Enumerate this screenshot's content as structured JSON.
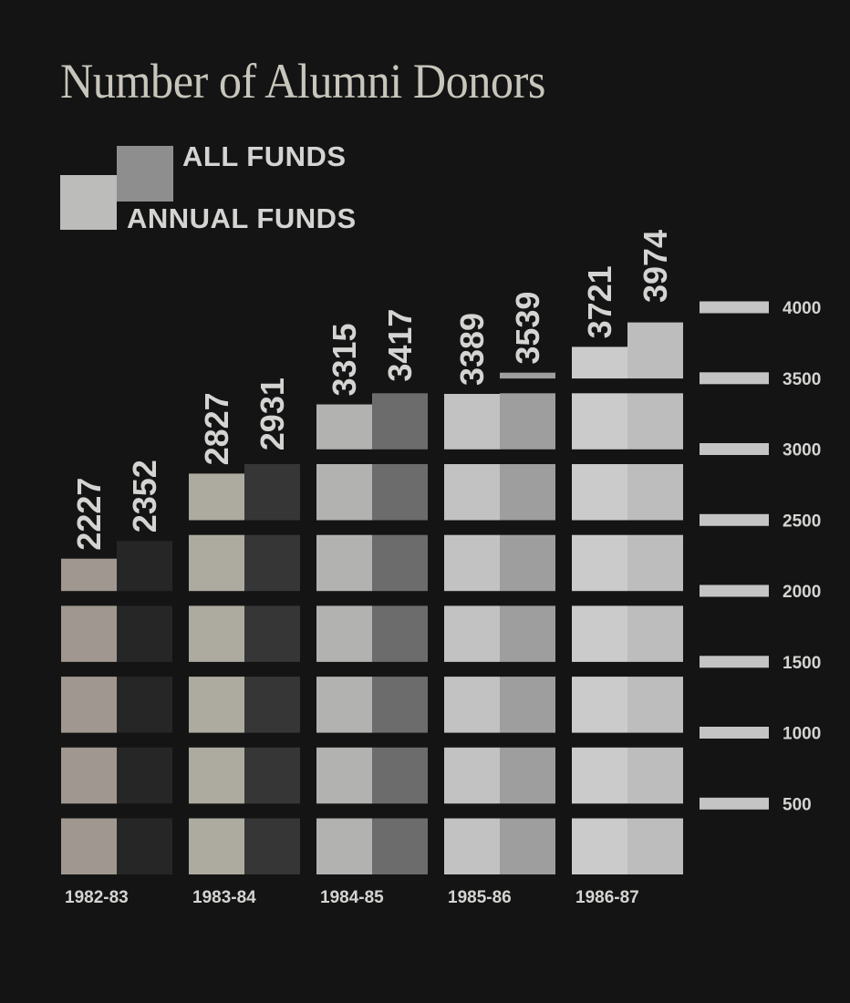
{
  "chart_data": {
    "type": "bar",
    "title": "Number of Alumni Donors",
    "categories": [
      "1982-83",
      "1983-84",
      "1984-85",
      "1985-86",
      "1986-87"
    ],
    "series": [
      {
        "name": "ANNUAL FUNDS",
        "values": [
          2227,
          2827,
          3315,
          3389,
          3721
        ]
      },
      {
        "name": "ALL FUNDS",
        "values": [
          2352,
          2931,
          3417,
          3539,
          3974
        ]
      }
    ],
    "data_labels": {
      "annual": [
        "2227",
        "2827",
        "3315",
        "3389",
        "3721"
      ],
      "all": [
        "2352",
        "2931",
        "3417",
        "3539",
        "3974"
      ]
    },
    "ylim": [
      0,
      4000
    ],
    "yticks": [
      "500",
      "1000",
      "1500",
      "2000",
      "2500",
      "3000",
      "3500",
      "4000"
    ],
    "ytick_values": [
      500,
      1000,
      1500,
      2000,
      2500,
      3000,
      3500,
      4000
    ],
    "axis_position": "right",
    "legend_position": "top-left",
    "grid": false,
    "colors": {
      "background": "#141414",
      "annual": [
        "#a09890",
        "#adaba0",
        "#b2b2b0",
        "#c2c2c2",
        "#cbcbcb"
      ],
      "all": [
        "#262626",
        "#363636",
        "#6c6c6c",
        "#9e9e9e",
        "#bdbdbd"
      ],
      "tick": "#c4c4c4",
      "text": "#d4d4d2"
    }
  }
}
